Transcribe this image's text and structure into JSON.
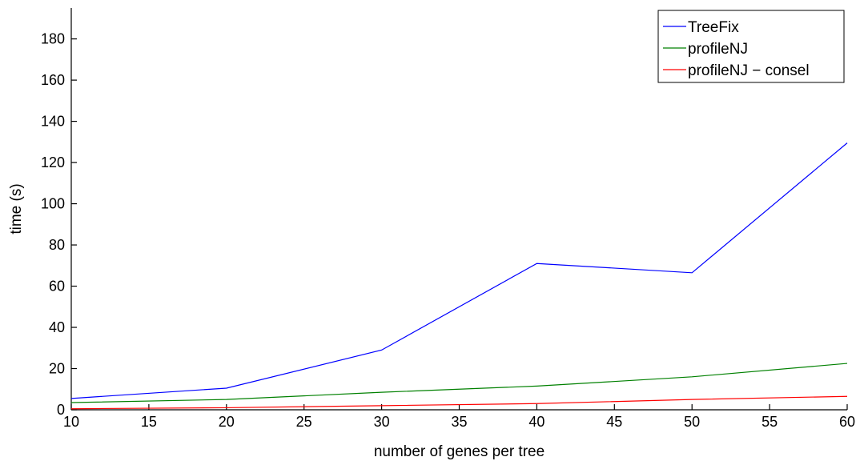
{
  "chart_data": {
    "type": "line",
    "title": "",
    "xlabel": "number of genes per tree",
    "ylabel": "time (s)",
    "xlim": [
      10,
      60
    ],
    "ylim": [
      0,
      195
    ],
    "xticks": [
      10,
      15,
      20,
      25,
      30,
      35,
      40,
      45,
      50,
      55,
      60
    ],
    "yticks": [
      0,
      20,
      40,
      60,
      80,
      100,
      120,
      140,
      160,
      180
    ],
    "grid": false,
    "legend_position": "top-right",
    "x": [
      10,
      20,
      30,
      40,
      50,
      60
    ],
    "series": [
      {
        "name": "TreeFix",
        "color": "#0000ff",
        "values": [
          5.5,
          10.5,
          29,
          71,
          66.5,
          129.5
        ]
      },
      {
        "name": "profileNJ",
        "color": "#008000",
        "values": [
          3.5,
          5,
          8.5,
          11.5,
          16,
          22.5
        ]
      },
      {
        "name": "profileNJ − consel",
        "color": "#ff0000",
        "values": [
          0.5,
          1,
          2,
          3,
          5,
          6.5
        ]
      }
    ]
  }
}
